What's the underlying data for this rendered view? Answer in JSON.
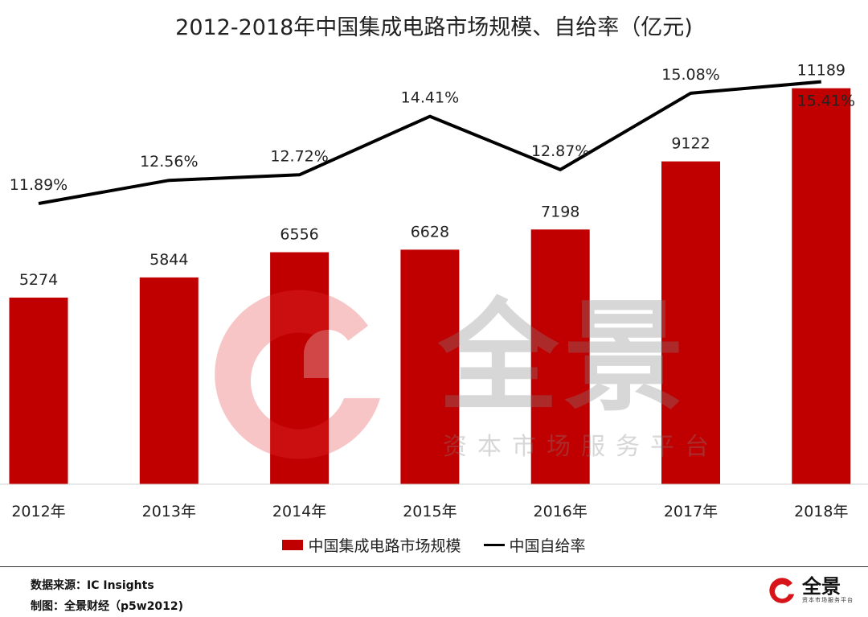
{
  "chart_data": {
    "type": "bar",
    "title": "2012-2018年中国集成电路市场规模、自给率（亿元)",
    "categories": [
      "2012年",
      "2013年",
      "2014年",
      "2015年",
      "2016年",
      "2017年",
      "2018年"
    ],
    "series": [
      {
        "name": "中国集成电路市场规模",
        "type": "bar",
        "values": [
          5274,
          5844,
          6556,
          6628,
          7198,
          9122,
          11189
        ]
      },
      {
        "name": "中国自给率",
        "type": "line",
        "values": [
          11.89,
          12.56,
          12.72,
          14.41,
          12.87,
          15.08,
          15.41
        ]
      }
    ],
    "bar_labels": [
      "5274",
      "5844",
      "6556",
      "6628",
      "7198",
      "9122",
      "11189"
    ],
    "line_labels": [
      "11.89%",
      "12.56%",
      "12.72%",
      "14.41%",
      "12.87%",
      "15.08%",
      "15.41%"
    ],
    "legend_position": "bottom",
    "grid": false,
    "colors": {
      "bar": "#c00000",
      "line": "#000000"
    }
  },
  "footer": {
    "source": "数据来源：IC Insights",
    "producer": "制图：全景财经（p5w2012)"
  },
  "watermark": {
    "name": "全景",
    "subtitle": "资本市场服务平台"
  },
  "brand": {
    "name": "全景",
    "subtitle": "资本市场服务平台"
  }
}
